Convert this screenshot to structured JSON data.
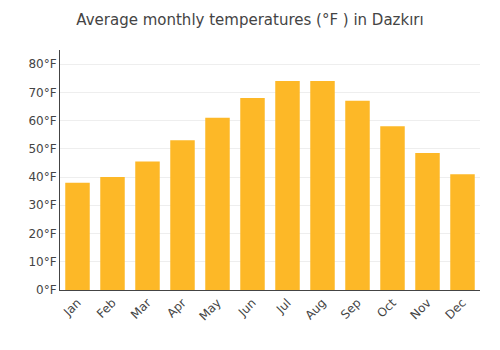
{
  "chart_data": {
    "type": "bar",
    "title": "Average monthly temperatures (°F ) in Dazkırı",
    "categories": [
      "Jan",
      "Feb",
      "Mar",
      "Apr",
      "May",
      "Jun",
      "Jul",
      "Aug",
      "Sep",
      "Oct",
      "Nov",
      "Dec"
    ],
    "values": [
      38,
      40,
      45.5,
      53,
      61,
      68,
      74,
      74,
      67,
      58,
      48.5,
      41
    ],
    "color": "#FDB827",
    "ylim": [
      0,
      85
    ],
    "yticks": [
      {
        "value": 0,
        "label": "0°F"
      },
      {
        "value": 10,
        "label": "10°F"
      },
      {
        "value": 20,
        "label": "20°F"
      },
      {
        "value": 30,
        "label": "30°F"
      },
      {
        "value": 40,
        "label": "40°F"
      },
      {
        "value": 50,
        "label": "50°F"
      },
      {
        "value": 60,
        "label": "60°F"
      },
      {
        "value": 70,
        "label": "70°F"
      },
      {
        "value": 80,
        "label": "80°F"
      }
    ],
    "grid": true
  }
}
